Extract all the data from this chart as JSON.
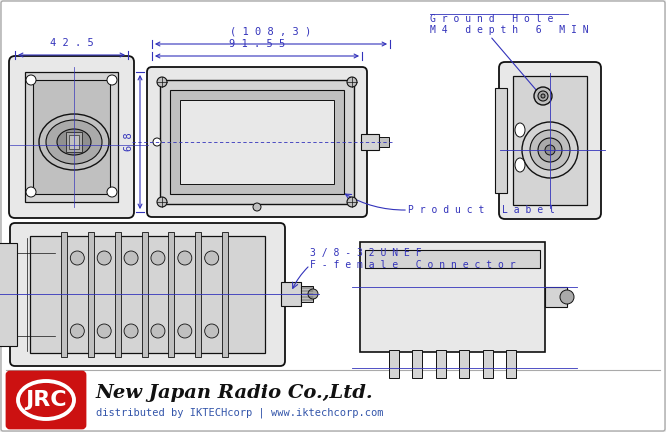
{
  "bg_color": "#f0f0f0",
  "drawing_bg": "#ffffff",
  "blue": "#3333bb",
  "dark": "#111111",
  "gray1": "#e8e8e8",
  "gray2": "#d4d4d4",
  "gray3": "#c0c0c0",
  "gray4": "#aaaaaa",
  "gray5": "#909090",
  "jrc_red": "#cc1111",
  "jrc_text": "#111111",
  "dist_text": "#3355aa",
  "company_name": "New Japan Radio Co.,Ltd.",
  "dist_line": "distributed by IKTECHcorp | www.iktechcorp.com",
  "jrc_logo": "JRC",
  "label_42_5": "4 2 . 5",
  "label_108_3": "( 1 0 8 , 3 )",
  "label_91_55": "9 1 . 5 5",
  "label_68": "6 8",
  "label_ground1": "G r o u n d   H o l e",
  "label_ground2": "M 4   d e p t h   6   M I N",
  "label_product": "P r o d u c t   L a b e l",
  "label_conn1": "3 / 8 - 3 2 U N E F",
  "label_conn2": "F - f e m a l e   C o n n e c t o r"
}
